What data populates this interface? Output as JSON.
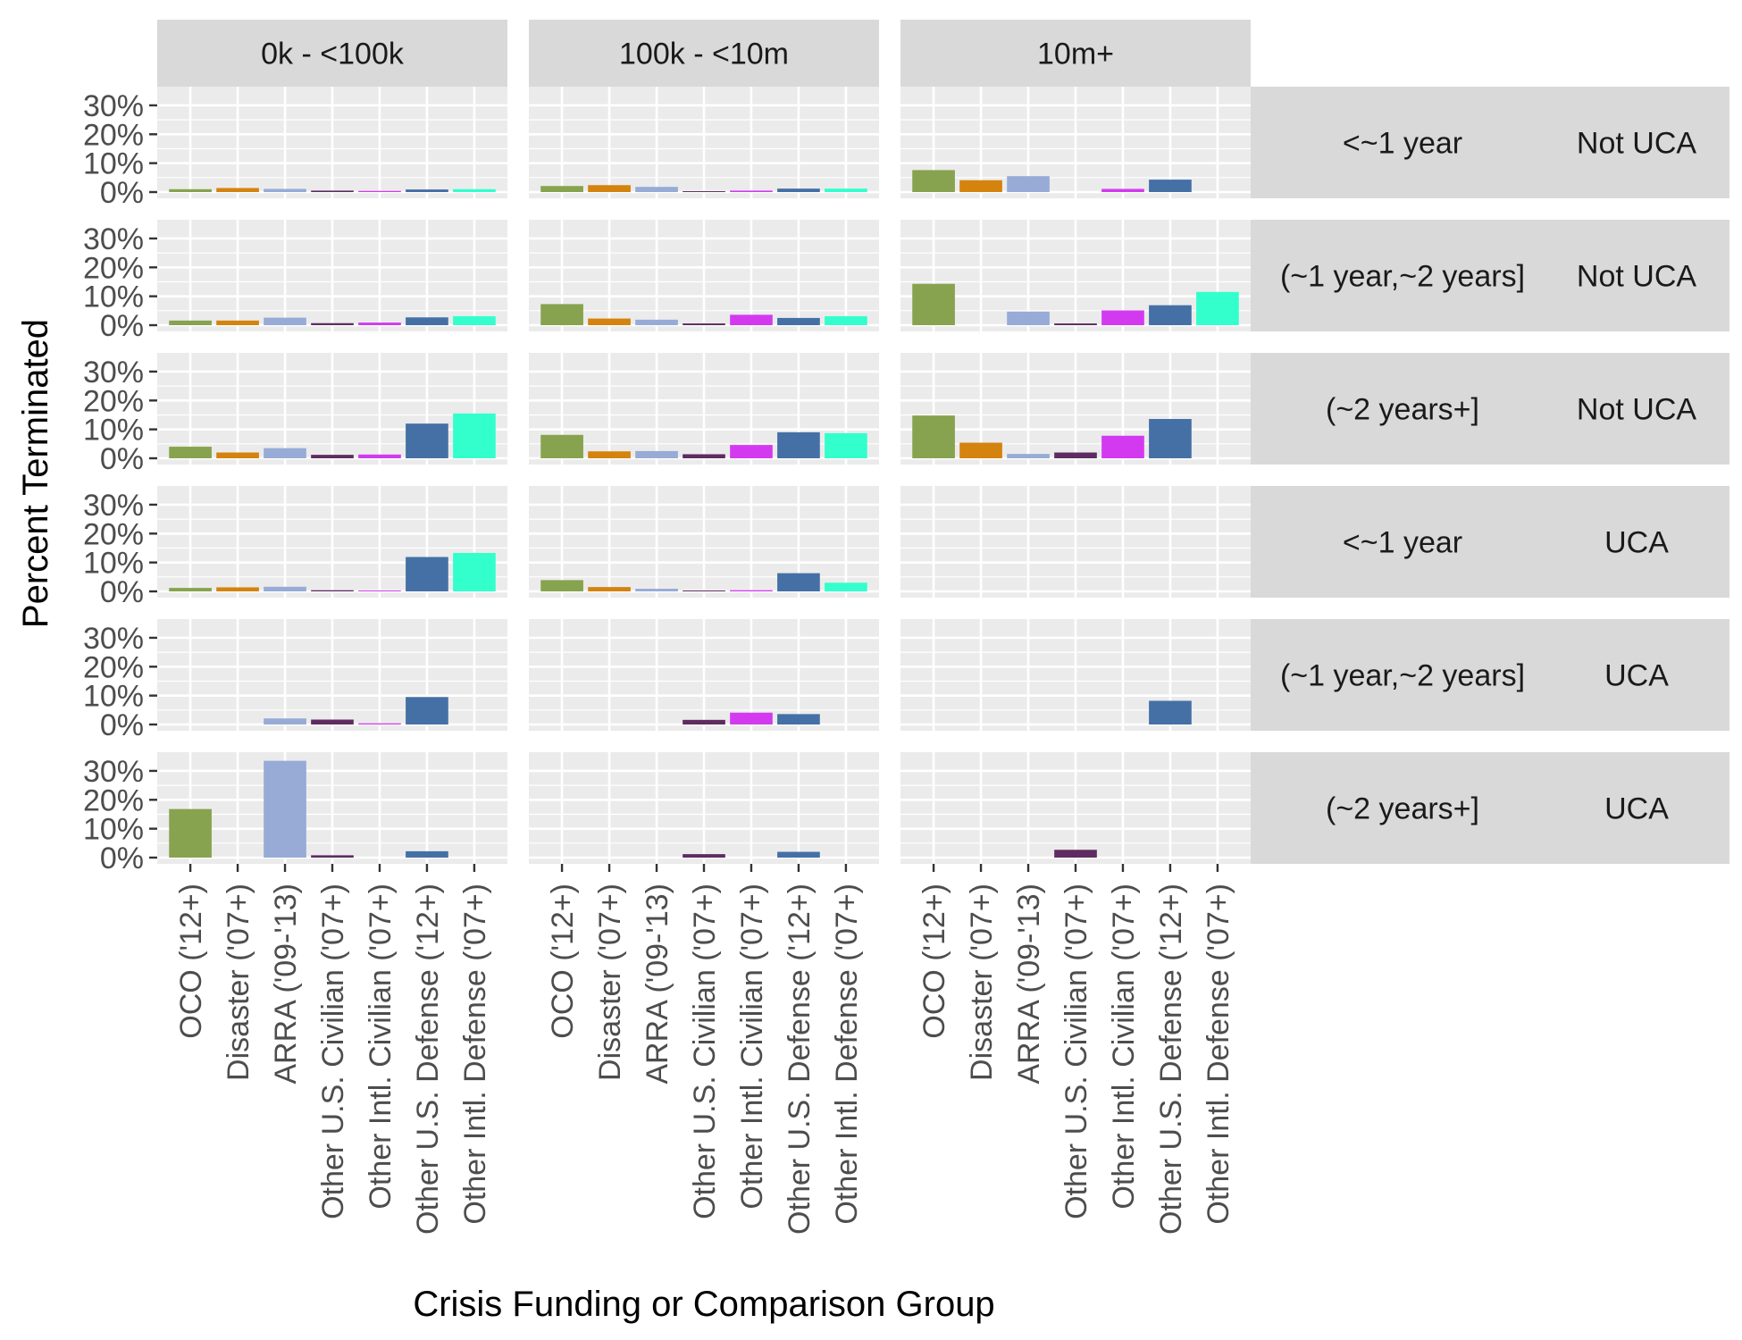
{
  "chart_data": {
    "type": "bar",
    "ylabel": "Percent Terminated",
    "xlabel": "Crisis Funding or Comparison Group",
    "y_ticks": [
      "0%",
      "10%",
      "20%",
      "30%"
    ],
    "ylim": [
      0,
      0.34
    ],
    "categories": [
      "OCO ('12+)",
      "Disaster ('07+)",
      "ARRA ('09-'13)",
      "Other U.S. Civilian ('07+)",
      "Other Intl. Civilian ('07+)",
      "Other U.S. Defense ('12+)",
      "Other Intl. Defense ('07+)"
    ],
    "category_colors": [
      "#87A34F",
      "#D4830F",
      "#97ABD6",
      "#5E2C61",
      "#D33AF0",
      "#4570A6",
      "#33FFCC"
    ],
    "columns": [
      "0k - <100k",
      "100k - <10m",
      "10m+"
    ],
    "rows": [
      {
        "duration": "<~1 year",
        "uca": "Not UCA"
      },
      {
        "duration": "(~1 year,~2 years]",
        "uca": "Not UCA"
      },
      {
        "duration": "(~2 years+]",
        "uca": "Not UCA"
      },
      {
        "duration": "<~1 year",
        "uca": "UCA"
      },
      {
        "duration": "(~1 year,~2 years]",
        "uca": "UCA"
      },
      {
        "duration": "(~2 years+]",
        "uca": "UCA"
      }
    ],
    "values": [
      [
        [
          0.01,
          0.014,
          0.011,
          0.005,
          0.004,
          0.009,
          0.01
        ],
        [
          0.021,
          0.024,
          0.018,
          0.003,
          0.005,
          0.012,
          0.012
        ],
        [
          0.076,
          0.041,
          0.055,
          null,
          0.011,
          0.043,
          null
        ]
      ],
      [
        [
          0.016,
          0.016,
          0.026,
          0.007,
          0.009,
          0.027,
          0.031
        ],
        [
          0.073,
          0.023,
          0.019,
          0.006,
          0.036,
          0.025,
          0.031
        ],
        [
          0.143,
          null,
          0.047,
          0.006,
          0.051,
          0.069,
          0.115
        ]
      ],
      [
        [
          0.04,
          0.02,
          0.035,
          0.012,
          0.013,
          0.12,
          0.155
        ],
        [
          0.081,
          0.024,
          0.025,
          0.014,
          0.046,
          0.09,
          0.087
        ],
        [
          0.148,
          0.054,
          0.015,
          0.02,
          0.078,
          0.136,
          null
        ]
      ],
      [
        [
          0.012,
          0.014,
          0.016,
          0.004,
          0.003,
          0.119,
          0.133
        ],
        [
          0.039,
          0.015,
          0.009,
          0.003,
          0.004,
          0.063,
          0.03
        ],
        [
          null,
          null,
          null,
          null,
          null,
          null,
          null
        ]
      ],
      [
        [
          null,
          null,
          0.021,
          0.017,
          0.004,
          0.095,
          null
        ],
        [
          null,
          null,
          null,
          0.016,
          0.041,
          0.036,
          null
        ],
        [
          null,
          null,
          null,
          null,
          null,
          0.082,
          null
        ]
      ],
      [
        [
          0.168,
          null,
          0.335,
          0.008,
          null,
          0.022,
          null
        ],
        [
          null,
          null,
          null,
          0.012,
          null,
          0.02,
          null
        ],
        [
          null,
          null,
          null,
          0.027,
          null,
          null,
          null
        ]
      ]
    ],
    "panel_background": "#EBEBEB",
    "strip_background": "#D9D9D9",
    "gridline_color": "#FFFFFF"
  }
}
